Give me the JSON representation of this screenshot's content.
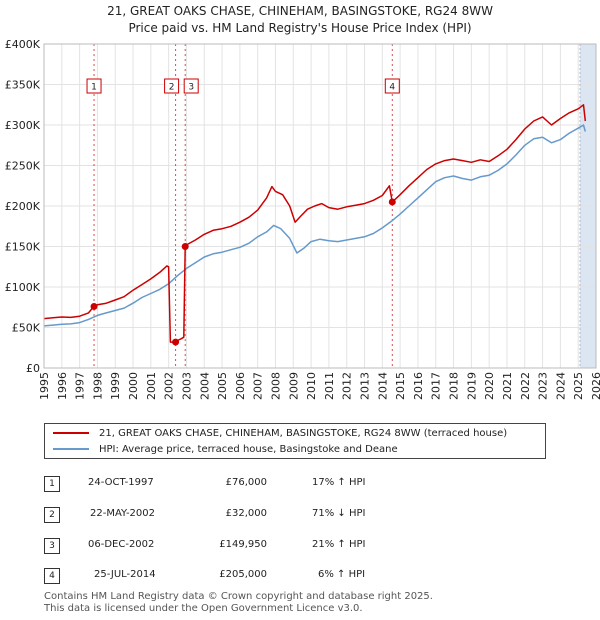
{
  "title": "21, GREAT OAKS CHASE, CHINEHAM, BASINGSTOKE, RG24 8WW",
  "subtitle": "Price paid vs. HM Land Registry's House Price Index (HPI)",
  "colors": {
    "property": "#cc0000",
    "hpi": "#6699cc",
    "shade": "#dce6f2",
    "marker_line": "#cc0000"
  },
  "chart_data": {
    "type": "line",
    "title": "21, GREAT OAKS CHASE, CHINEHAM, BASINGSTOKE, RG24 8WW",
    "subtitle": "Price paid vs. HM Land Registry's House Price Index (HPI)",
    "xlim": [
      1995,
      2026
    ],
    "ylim": [
      0,
      400000
    ],
    "y_ticks": [
      0,
      50000,
      100000,
      150000,
      200000,
      250000,
      300000,
      350000,
      400000
    ],
    "y_tick_labels": [
      "£0",
      "£50K",
      "£100K",
      "£150K",
      "£200K",
      "£250K",
      "£300K",
      "£350K",
      "£400K"
    ],
    "x_ticks": [
      1995,
      1996,
      1997,
      1998,
      1999,
      2000,
      2001,
      2002,
      2003,
      2004,
      2005,
      2006,
      2007,
      2008,
      2009,
      2010,
      2011,
      2012,
      2013,
      2014,
      2015,
      2016,
      2017,
      2018,
      2019,
      2020,
      2021,
      2022,
      2023,
      2024,
      2025,
      2026
    ],
    "grid": true,
    "shaded_region_start": 2025.1,
    "series": [
      {
        "name": "21, GREAT OAKS CHASE, CHINEHAM, BASINGSTOKE, RG24 8WW (terraced house)",
        "color": "#cc0000",
        "points": [
          [
            1995.0,
            61000
          ],
          [
            1995.5,
            62000
          ],
          [
            1996.0,
            63000
          ],
          [
            1996.5,
            62500
          ],
          [
            1997.0,
            64000
          ],
          [
            1997.5,
            68000
          ],
          [
            1997.8,
            76000
          ],
          [
            1998.0,
            78000
          ],
          [
            1998.5,
            80000
          ],
          [
            1999.0,
            84000
          ],
          [
            1999.5,
            88000
          ],
          [
            2000.0,
            96000
          ],
          [
            2000.5,
            103000
          ],
          [
            2001.0,
            110000
          ],
          [
            2001.5,
            118000
          ],
          [
            2001.9,
            126000
          ],
          [
            2002.0,
            125000
          ],
          [
            2002.1,
            32000
          ],
          [
            2002.35,
            32000
          ],
          [
            2002.5,
            34000
          ],
          [
            2002.7,
            36000
          ],
          [
            2002.85,
            38000
          ],
          [
            2002.93,
            149950
          ],
          [
            2003.0,
            152000
          ],
          [
            2003.5,
            158000
          ],
          [
            2004.0,
            165000
          ],
          [
            2004.5,
            170000
          ],
          [
            2005.0,
            172000
          ],
          [
            2005.5,
            175000
          ],
          [
            2006.0,
            180000
          ],
          [
            2006.5,
            186000
          ],
          [
            2007.0,
            195000
          ],
          [
            2007.5,
            210000
          ],
          [
            2007.8,
            224000
          ],
          [
            2008.0,
            218000
          ],
          [
            2008.4,
            214000
          ],
          [
            2008.8,
            200000
          ],
          [
            2009.1,
            180000
          ],
          [
            2009.4,
            187000
          ],
          [
            2009.8,
            196000
          ],
          [
            2010.2,
            200000
          ],
          [
            2010.6,
            203000
          ],
          [
            2011.0,
            198000
          ],
          [
            2011.5,
            196000
          ],
          [
            2012.0,
            199000
          ],
          [
            2012.5,
            201000
          ],
          [
            2013.0,
            203000
          ],
          [
            2013.5,
            207000
          ],
          [
            2014.0,
            213000
          ],
          [
            2014.4,
            225000
          ],
          [
            2014.56,
            205000
          ],
          [
            2015.0,
            214000
          ],
          [
            2015.5,
            225000
          ],
          [
            2016.0,
            235000
          ],
          [
            2016.5,
            245000
          ],
          [
            2017.0,
            252000
          ],
          [
            2017.5,
            256000
          ],
          [
            2018.0,
            258000
          ],
          [
            2018.5,
            256000
          ],
          [
            2019.0,
            254000
          ],
          [
            2019.5,
            257000
          ],
          [
            2020.0,
            255000
          ],
          [
            2020.5,
            262000
          ],
          [
            2021.0,
            270000
          ],
          [
            2021.5,
            282000
          ],
          [
            2022.0,
            295000
          ],
          [
            2022.5,
            305000
          ],
          [
            2023.0,
            310000
          ],
          [
            2023.5,
            300000
          ],
          [
            2024.0,
            308000
          ],
          [
            2024.5,
            315000
          ],
          [
            2025.0,
            320000
          ],
          [
            2025.3,
            325000
          ],
          [
            2025.4,
            305000
          ]
        ]
      },
      {
        "name": "HPI: Average price, terraced house, Basingstoke and Deane",
        "color": "#6699cc",
        "points": [
          [
            1995.0,
            52000
          ],
          [
            1995.5,
            53000
          ],
          [
            1996.0,
            54000
          ],
          [
            1996.5,
            54500
          ],
          [
            1997.0,
            56000
          ],
          [
            1997.5,
            60000
          ],
          [
            1998.0,
            65000
          ],
          [
            1998.5,
            68000
          ],
          [
            1999.0,
            71000
          ],
          [
            1999.5,
            74000
          ],
          [
            2000.0,
            80000
          ],
          [
            2000.5,
            87000
          ],
          [
            2001.0,
            92000
          ],
          [
            2001.5,
            97000
          ],
          [
            2002.0,
            104000
          ],
          [
            2002.5,
            114000
          ],
          [
            2003.0,
            123000
          ],
          [
            2003.5,
            130000
          ],
          [
            2004.0,
            137000
          ],
          [
            2004.5,
            141000
          ],
          [
            2005.0,
            143000
          ],
          [
            2005.5,
            146000
          ],
          [
            2006.0,
            149000
          ],
          [
            2006.5,
            154000
          ],
          [
            2007.0,
            162000
          ],
          [
            2007.5,
            168000
          ],
          [
            2007.9,
            176000
          ],
          [
            2008.3,
            172000
          ],
          [
            2008.8,
            160000
          ],
          [
            2009.2,
            142000
          ],
          [
            2009.6,
            148000
          ],
          [
            2010.0,
            156000
          ],
          [
            2010.5,
            159000
          ],
          [
            2011.0,
            157000
          ],
          [
            2011.5,
            156000
          ],
          [
            2012.0,
            158000
          ],
          [
            2012.5,
            160000
          ],
          [
            2013.0,
            162000
          ],
          [
            2013.5,
            166000
          ],
          [
            2014.0,
            173000
          ],
          [
            2014.5,
            181000
          ],
          [
            2015.0,
            190000
          ],
          [
            2015.5,
            200000
          ],
          [
            2016.0,
            210000
          ],
          [
            2016.5,
            220000
          ],
          [
            2017.0,
            230000
          ],
          [
            2017.5,
            235000
          ],
          [
            2018.0,
            237000
          ],
          [
            2018.5,
            234000
          ],
          [
            2019.0,
            232000
          ],
          [
            2019.5,
            236000
          ],
          [
            2020.0,
            238000
          ],
          [
            2020.5,
            244000
          ],
          [
            2021.0,
            252000
          ],
          [
            2021.5,
            263000
          ],
          [
            2022.0,
            275000
          ],
          [
            2022.5,
            283000
          ],
          [
            2023.0,
            285000
          ],
          [
            2023.5,
            278000
          ],
          [
            2024.0,
            282000
          ],
          [
            2024.5,
            290000
          ],
          [
            2025.0,
            296000
          ],
          [
            2025.3,
            300000
          ],
          [
            2025.4,
            292000
          ]
        ]
      }
    ],
    "markers": [
      {
        "label": "1",
        "x": 1997.81,
        "y": 76000
      },
      {
        "label": "2",
        "x": 2002.39,
        "y": 32000
      },
      {
        "label": "3",
        "x": 2002.93,
        "y": 149950
      },
      {
        "label": "4",
        "x": 2014.56,
        "y": 205000
      }
    ]
  },
  "legend": {
    "property_label": "21, GREAT OAKS CHASE, CHINEHAM, BASINGSTOKE, RG24 8WW (terraced house)",
    "hpi_label": "HPI: Average price, terraced house, Basingstoke and Deane"
  },
  "transactions": [
    {
      "num": "1",
      "date": "24-OCT-1997",
      "price": "£76,000",
      "hpi": "17% ↑ HPI"
    },
    {
      "num": "2",
      "date": "22-MAY-2002",
      "price": "£32,000",
      "hpi": "71% ↓ HPI"
    },
    {
      "num": "3",
      "date": "06-DEC-2002",
      "price": "£149,950",
      "hpi": "21% ↑ HPI"
    },
    {
      "num": "4",
      "date": "25-JUL-2014",
      "price": "£205,000",
      "hpi": "6% ↑ HPI"
    }
  ],
  "footer": {
    "line1": "Contains HM Land Registry data © Crown copyright and database right 2025.",
    "line2": "This data is licensed under the Open Government Licence v3.0."
  }
}
